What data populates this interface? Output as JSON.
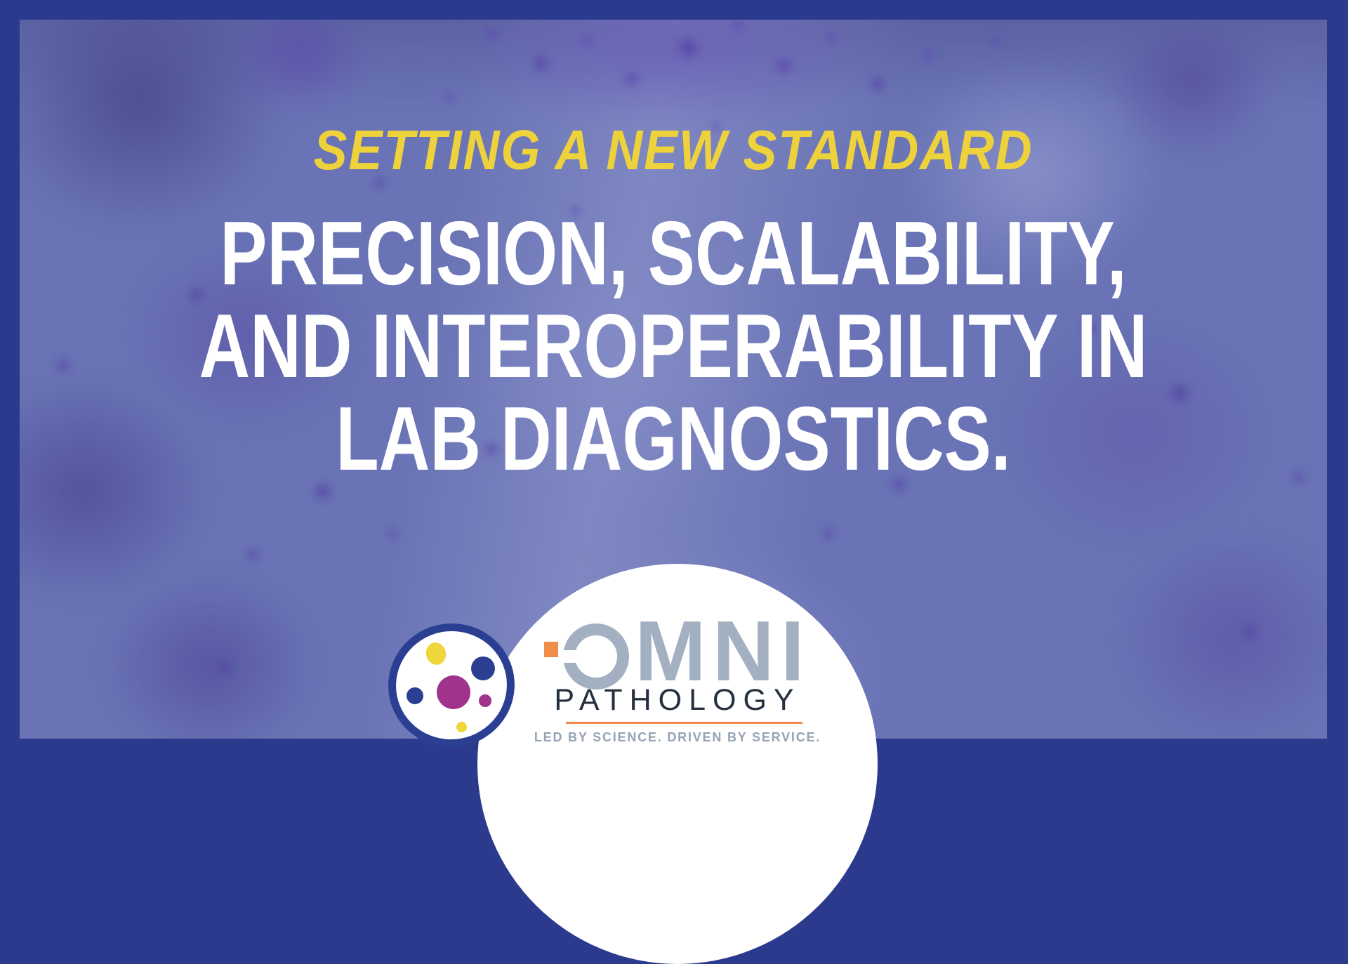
{
  "kicker": "SETTING A NEW STANDARD",
  "headline": {
    "line1": "PRECISION, SCALABILITY,",
    "line2": "AND INTEROPERABILITY IN",
    "line3": "LAB DIAGNOSTICS."
  },
  "logo": {
    "wordmark": "OMNI",
    "wordmark_visible_letters": "MNI",
    "name": "PATHOLOGY",
    "tagline": "LED BY SCIENCE. DRIVEN BY SERVICE."
  },
  "icons": {
    "cell_icon": "stylized cell with colored organelle dots",
    "omni_o_icon": "open ring O glyph with orange square"
  },
  "colors": {
    "frame_navy": "#2b3a8c",
    "bg_base": "#6973b5",
    "kicker_yellow": "#eed23b",
    "headline_white": "#ffffff",
    "omni_gray": "#a3b0c2",
    "pathology_dark": "#25303f",
    "tagline_gray": "#94a3b5",
    "accent_orange": "#ef8d49",
    "dot_magenta": "#a0338c",
    "dot_yellow": "#efd63c",
    "dot_navy": "#2b3f92"
  }
}
